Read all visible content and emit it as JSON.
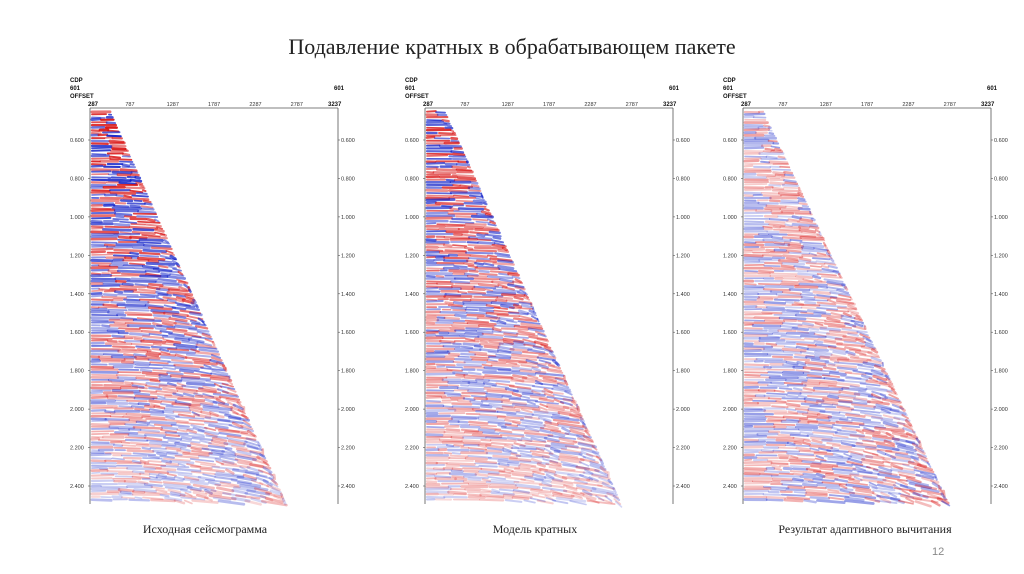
{
  "slide": {
    "title": "Подавление кратных в обрабатывающем пакете",
    "page_number": "12"
  },
  "colors": {
    "positive": "#d81010",
    "negative": "#1020c8",
    "frame": "#555555"
  },
  "panels": [
    {
      "id": "original",
      "caption": "Исходная сейсмограмма",
      "cdp_label": "CDP",
      "cdp_left": "601",
      "cdp_right": "601",
      "offset_label": "OFFSET",
      "offset_ticks": [
        "287",
        "787",
        "1287",
        "1787",
        "2287",
        "2787",
        "3237"
      ],
      "time_ticks": [
        "0.600",
        "0.800",
        "1.000",
        "1.200",
        "1.400",
        "1.600",
        "1.800",
        "2.000",
        "2.200",
        "2.400"
      ],
      "amplitude": 1.0
    },
    {
      "id": "multiple-model",
      "caption": "Модель кратных",
      "cdp_label": "CDP",
      "cdp_left": "601",
      "cdp_right": "601",
      "offset_label": "OFFSET",
      "offset_ticks": [
        "287",
        "787",
        "1287",
        "1787",
        "2287",
        "2787",
        "3237"
      ],
      "time_ticks": [
        "0.600",
        "0.800",
        "1.000",
        "1.200",
        "1.400",
        "1.600",
        "1.800",
        "2.000",
        "2.200",
        "2.400"
      ],
      "amplitude": 0.9
    },
    {
      "id": "adaptive-subtraction",
      "caption": "Результат адаптивного вычитания",
      "cdp_label": "CDP",
      "cdp_left": "601",
      "cdp_right": "601",
      "offset_label": "OFFSET",
      "offset_ticks": [
        "287",
        "787",
        "1287",
        "1787",
        "2287",
        "2787",
        "3237"
      ],
      "time_ticks": [
        "0.600",
        "0.800",
        "1.000",
        "1.200",
        "1.400",
        "1.600",
        "1.800",
        "2.000",
        "2.200",
        "2.400"
      ],
      "amplitude": 0.55
    }
  ]
}
